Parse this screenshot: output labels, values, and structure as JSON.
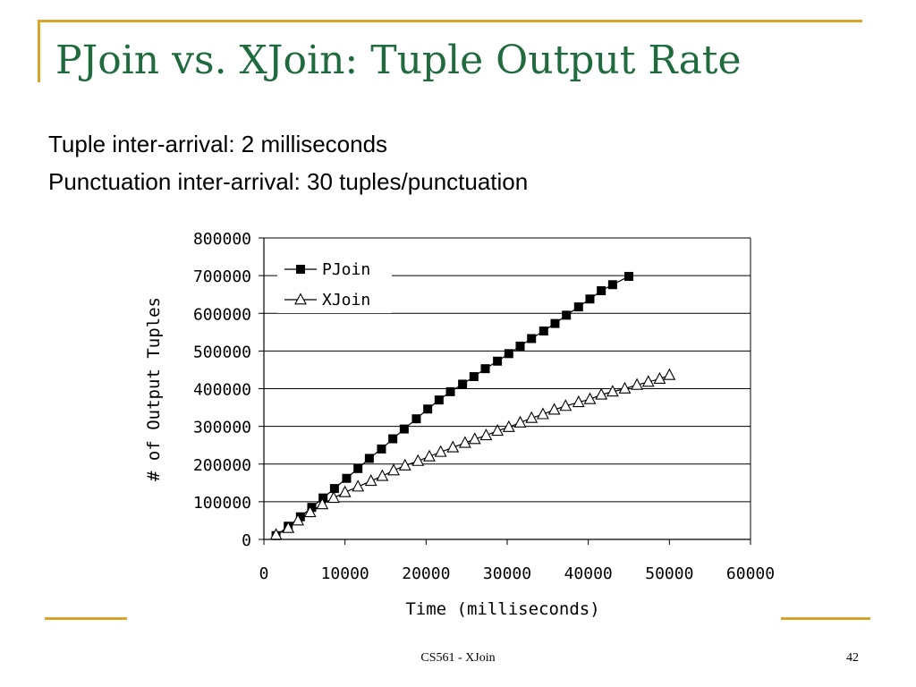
{
  "slide": {
    "title": "PJoin vs. XJoin: Tuple Output Rate",
    "subtitle_lines": [
      "Tuple inter-arrival: 2 milliseconds",
      "Punctuation inter-arrival: 30 tuples/punctuation"
    ],
    "footer_center": "CS561 - XJoin",
    "page_number": "42",
    "colors": {
      "title": "#1f6b3e",
      "accent": "#d6a52a",
      "axis": "#000000"
    }
  },
  "chart_data": {
    "type": "line",
    "title": "",
    "xlabel": "Time (milliseconds)",
    "ylabel": "# of Output Tuples",
    "xlim": [
      0,
      60000
    ],
    "ylim": [
      0,
      800000
    ],
    "x_ticks": [
      "0",
      "10000",
      "20000",
      "30000",
      "40000",
      "50000",
      "60000"
    ],
    "y_ticks": [
      "0",
      "100000",
      "200000",
      "300000",
      "400000",
      "500000",
      "600000",
      "700000",
      "800000"
    ],
    "grid": "horizontal",
    "legend_position": "top-left",
    "series": [
      {
        "name": "PJoin",
        "marker": "filled-square",
        "x": [
          1500,
          3000,
          4500,
          5900,
          7300,
          8700,
          10200,
          11600,
          13000,
          14500,
          15900,
          17300,
          18800,
          20200,
          21600,
          23000,
          24500,
          25900,
          27300,
          28800,
          30200,
          31600,
          33000,
          34500,
          35900,
          37300,
          38800,
          40200,
          41600,
          43000,
          45000
        ],
        "y": [
          10000,
          35000,
          60000,
          85000,
          110000,
          135000,
          162000,
          188000,
          215000,
          240000,
          267000,
          293000,
          320000,
          346000,
          370000,
          392000,
          412000,
          432000,
          453000,
          473000,
          493000,
          513000,
          533000,
          553000,
          573000,
          595000,
          617000,
          638000,
          660000,
          676000,
          698000
        ]
      },
      {
        "name": "XJoin",
        "marker": "open-triangle",
        "x": [
          1500,
          3000,
          4200,
          5700,
          7200,
          8600,
          10000,
          11600,
          13200,
          14600,
          16000,
          17400,
          19000,
          20400,
          21800,
          23300,
          24800,
          26000,
          27400,
          28800,
          30200,
          31600,
          33000,
          34400,
          35800,
          37200,
          38800,
          40200,
          41600,
          43000,
          44500,
          46000,
          47400,
          48800,
          50000
        ],
        "y": [
          12000,
          30000,
          50000,
          72000,
          93000,
          110000,
          125000,
          140000,
          155000,
          168000,
          183000,
          196000,
          208000,
          220000,
          232000,
          244000,
          256000,
          266000,
          276000,
          288000,
          298000,
          310000,
          322000,
          332000,
          344000,
          354000,
          364000,
          372000,
          384000,
          392000,
          400000,
          410000,
          418000,
          426000,
          436000
        ]
      }
    ]
  }
}
